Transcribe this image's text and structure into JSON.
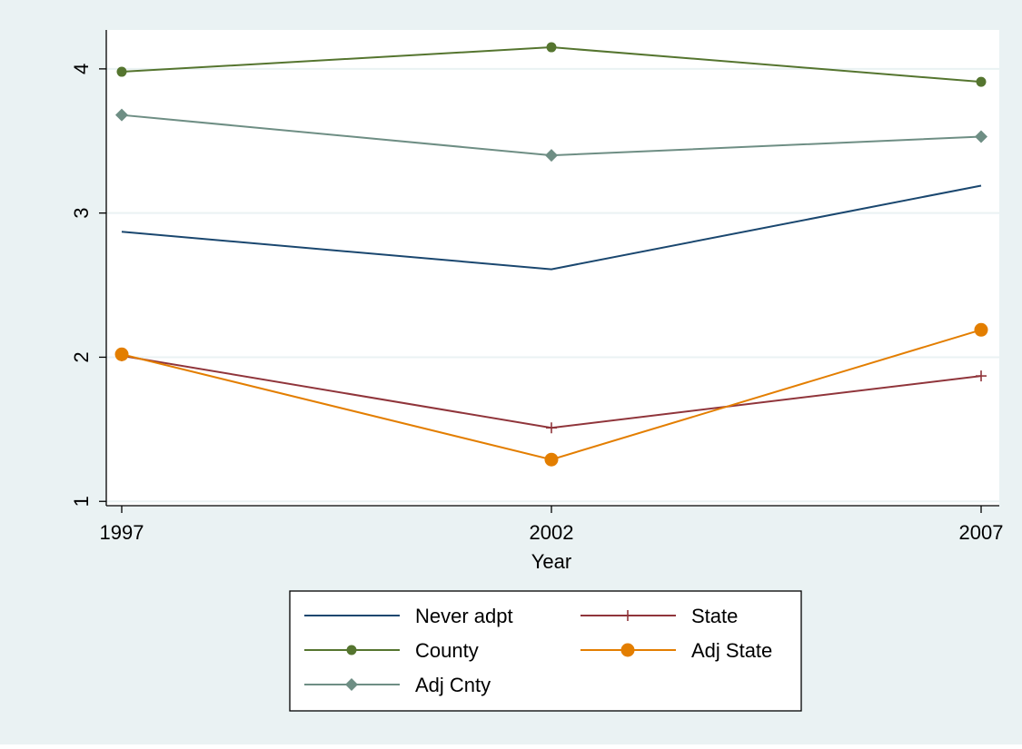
{
  "chart_data": {
    "type": "line",
    "title": "",
    "xlabel": "Year",
    "ylabel": "",
    "x": [
      1997,
      2002,
      2007
    ],
    "x_ticks": [
      "1997",
      "2002",
      "2007"
    ],
    "y_ticks": [
      "1",
      "2",
      "3",
      "4"
    ],
    "xlim": [
      1997,
      2007
    ],
    "ylim": [
      0.97,
      4.27
    ],
    "grid": true,
    "legend_position": "bottom",
    "series": [
      {
        "name": "Never adpt",
        "values": [
          2.87,
          2.61,
          3.19
        ],
        "color": "#1a476f",
        "marker": "none"
      },
      {
        "name": "State",
        "values": [
          2.01,
          1.51,
          1.87
        ],
        "color": "#90353b",
        "marker": "plus"
      },
      {
        "name": "County",
        "values": [
          3.98,
          4.15,
          3.91
        ],
        "color": "#55752f",
        "marker": "circle"
      },
      {
        "name": "Adj State",
        "values": [
          2.02,
          1.29,
          2.19
        ],
        "color": "#e37e00",
        "marker": "circle-large"
      },
      {
        "name": "Adj Cnty",
        "values": [
          3.68,
          3.4,
          3.53
        ],
        "color": "#6e8e84",
        "marker": "diamond"
      }
    ]
  },
  "colors": {
    "outer_background": "#eaf2f3",
    "plot_background": "#ffffff",
    "gridline": "#eaf2f3",
    "axis": "#000000"
  }
}
